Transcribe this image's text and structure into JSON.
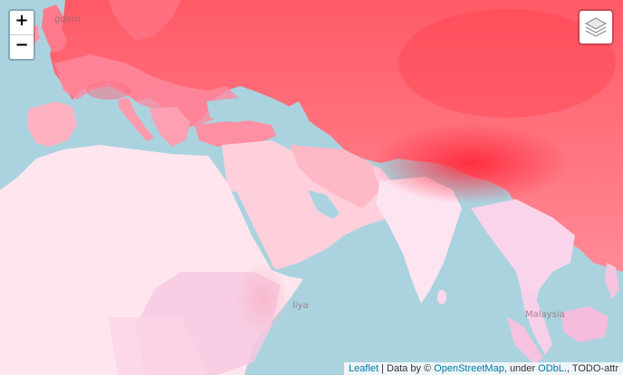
{
  "map": {
    "colors": {
      "water": "#aad3df",
      "land_cool": "#ffe6ee",
      "land_warm": "#ff7a86",
      "land_hot": "#ff3040"
    },
    "labels": {
      "uk": "gdom",
      "somalia": "liya",
      "malaysia": "Malaysia"
    }
  },
  "controls": {
    "zoom_in": "+",
    "zoom_out": "−",
    "layers_icon": "layers-icon"
  },
  "attribution": {
    "leaflet": "Leaflet",
    "sep1": " | Data by © ",
    "osm": "OpenStreetMap",
    "sep2": ", under ",
    "odbl": "ODbL",
    "tail": "., TODO-attr"
  }
}
